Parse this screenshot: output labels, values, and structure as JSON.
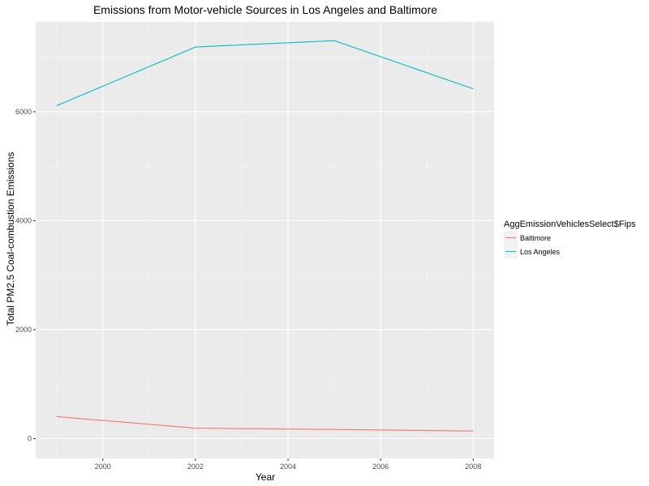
{
  "chart_data": {
    "type": "line",
    "title": "Emissions from Motor-vehicle Sources in Los Angeles and Baltimore",
    "xlabel": "Year",
    "ylabel": "Total PM2.5 Coal-combustion Emissions",
    "x": [
      1999,
      2002,
      2005,
      2008
    ],
    "xlim": [
      1998.55,
      2008.45
    ],
    "ylim": [
      -365,
      7650
    ],
    "xticks": [
      2000,
      2002,
      2004,
      2006,
      2008
    ],
    "yticks": [
      0,
      2000,
      4000,
      6000
    ],
    "xtick_labels": [
      "2000",
      "2002",
      "2004",
      "2006",
      "2008"
    ],
    "ytick_labels": [
      "0",
      "2000",
      "4000",
      "6000"
    ],
    "grid": true,
    "legend": {
      "title": "AggEmissionVehiclesSelect$Fips",
      "placement": "right"
    },
    "series": [
      {
        "name": "Baltimore",
        "color": "#F8766D",
        "values": [
          403,
          192,
          167,
          138
        ]
      },
      {
        "name": "Los Angeles",
        "color": "#00BFC4",
        "values": [
          6110,
          7188,
          7305,
          6421
        ]
      }
    ]
  }
}
